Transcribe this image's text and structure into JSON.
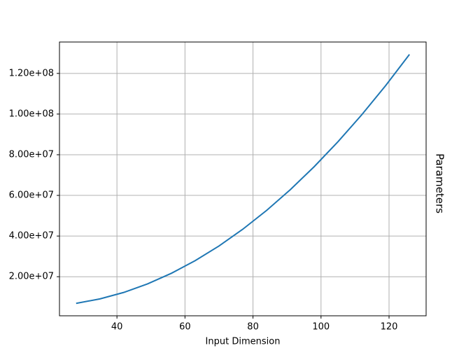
{
  "chart_data": {
    "type": "line",
    "xlabel": "Input Dimension",
    "ylabel": "Parameters",
    "x": [
      28,
      35,
      42,
      49,
      56,
      63,
      70,
      77,
      84,
      91,
      98,
      105,
      112,
      119,
      126
    ],
    "series": [
      {
        "color": "#1f77b4",
        "values": [
          6900000,
          9080000,
          12270000,
          16470000,
          21680000,
          27900000,
          35120000,
          43360000,
          52610000,
          62870000,
          74140000,
          86420000,
          99710000,
          114000000,
          129320000
        ]
      }
    ],
    "xlim": [
      23.1,
      130.9
    ],
    "xticks": [
      40,
      60,
      80,
      100,
      120
    ],
    "ylim": [
      780000,
      135440000
    ],
    "yticks": [
      {
        "value": 20000000,
        "label": "2.00e+07"
      },
      {
        "value": 40000000,
        "label": "4.00e+07"
      },
      {
        "value": 60000000,
        "label": "6.00e+07"
      },
      {
        "value": 80000000,
        "label": "8.00e+07"
      },
      {
        "value": 100000000,
        "label": "1.00e+08"
      },
      {
        "value": 120000000,
        "label": "1.20e+08"
      }
    ],
    "grid": true
  }
}
